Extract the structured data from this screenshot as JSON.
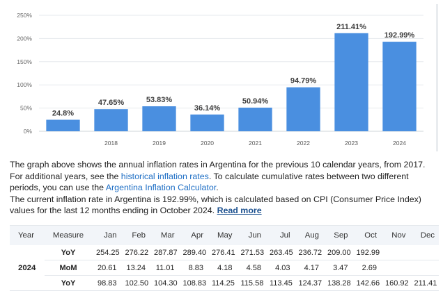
{
  "chart_data": {
    "type": "bar",
    "categories": [
      "",
      "2018",
      "2019",
      "2020",
      "2021",
      "2022",
      "2023",
      "2024"
    ],
    "values": [
      24.8,
      47.65,
      53.83,
      36.14,
      50.94,
      94.79,
      211.41,
      192.99
    ],
    "data_labels": [
      "24.8%",
      "47.65%",
      "53.83%",
      "36.14%",
      "50.94%",
      "94.79%",
      "211.41%",
      "192.99%"
    ],
    "ylim": [
      0,
      250
    ],
    "yticks": [
      0,
      50,
      100,
      150,
      200,
      250
    ],
    "ytick_labels": [
      "0%",
      "50%",
      "100%",
      "150%",
      "200%",
      "250%"
    ],
    "bar_color": "#4a8fe0",
    "grid": true,
    "title": "",
    "xlabel": "",
    "ylabel": ""
  },
  "description": {
    "p1_a": "The graph above shows the annual inflation rates in Argentina for the previous 10 calendar years, from 2017. For additional years, see the ",
    "p1_link1": "historical inflation rates",
    "p1_b": ". To calculate cumulative rates between two different periods, you can use the ",
    "p1_link2": "Argentina Inflation Calculator",
    "p1_c": ".",
    "p2_a": "The current inflation rate in Argentina is 192.99%, which is calculated based on CPI (Consumer Price Index) values for the last 12 months ending in October 2024. ",
    "p2_link": "Read more"
  },
  "table": {
    "headers": [
      "Year",
      "Measure",
      "Jan",
      "Feb",
      "Mar",
      "Apr",
      "May",
      "Jun",
      "Jul",
      "Aug",
      "Sep",
      "Oct",
      "Nov",
      "Dec"
    ],
    "rows": [
      {
        "year": "2024",
        "measure": "YoY",
        "values": [
          "254.25",
          "276.22",
          "287.87",
          "289.40",
          "276.41",
          "271.53",
          "263.45",
          "236.72",
          "209.00",
          "192.99",
          "",
          ""
        ]
      },
      {
        "year": "",
        "measure": "MoM",
        "values": [
          "20.61",
          "13.24",
          "11.01",
          "8.83",
          "4.18",
          "4.58",
          "4.03",
          "4.17",
          "3.47",
          "2.69",
          "",
          ""
        ]
      },
      {
        "year": "",
        "measure": "YoY",
        "values": [
          "98.83",
          "102.50",
          "104.30",
          "108.83",
          "114.25",
          "115.58",
          "113.45",
          "124.37",
          "138.28",
          "142.66",
          "160.92",
          "211.41"
        ]
      }
    ]
  }
}
